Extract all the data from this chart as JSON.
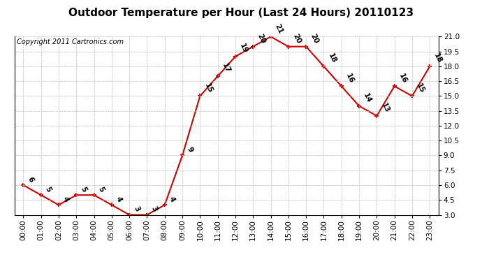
{
  "title": "Outdoor Temperature per Hour (Last 24 Hours) 20110123",
  "copyright": "Copyright 2011 Cartronics.com",
  "hours": [
    "00:00",
    "01:00",
    "02:00",
    "03:00",
    "04:00",
    "05:00",
    "06:00",
    "07:00",
    "08:00",
    "09:00",
    "10:00",
    "11:00",
    "12:00",
    "13:00",
    "14:00",
    "15:00",
    "16:00",
    "17:00",
    "18:00",
    "19:00",
    "20:00",
    "21:00",
    "22:00",
    "23:00"
  ],
  "temps": [
    6,
    5,
    4,
    5,
    5,
    4,
    3,
    3,
    4,
    9,
    15,
    17,
    19,
    20,
    21,
    20,
    20,
    18,
    16,
    14,
    13,
    16,
    15,
    18
  ],
  "ylim": [
    3.0,
    21.0
  ],
  "yticks": [
    3.0,
    4.5,
    6.0,
    7.5,
    9.0,
    10.5,
    12.0,
    13.5,
    15.0,
    16.5,
    18.0,
    19.5,
    21.0
  ],
  "line_color": "#cc0000",
  "marker_color": "#cc0000",
  "bg_color": "#ffffff",
  "grid_color": "#bbbbbb",
  "title_fontsize": 11,
  "copyright_fontsize": 7,
  "label_fontsize": 7.5,
  "tick_fontsize": 7.5
}
